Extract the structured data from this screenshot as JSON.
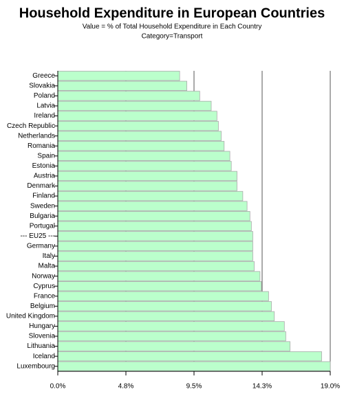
{
  "chart_data": {
    "type": "hbar",
    "title": "Household Expenditure in European Countries",
    "subtitle": [
      "Value = % of Total Household Expenditure in Each Country",
      "Category=Transport"
    ],
    "categories": [
      "Greece",
      "Slovakia",
      "Poland",
      "Latvia",
      "Ireland",
      "Czech Republic",
      "Netherlands",
      "Romania",
      "Spain",
      "Estonia",
      "Austria",
      "Denmark",
      "Finland",
      "Sweden",
      "Bulgaria",
      "Portugal",
      "--- EU25 ---",
      "Germany",
      "Italy",
      "Malta",
      "Norway",
      "Cyprus",
      "France",
      "Belgium",
      "United Kingdom",
      "Hungary",
      "Slovenia",
      "Lithuania",
      "Iceland",
      "Luxembourg"
    ],
    "values": [
      8.5,
      9.0,
      9.9,
      10.7,
      11.1,
      11.2,
      11.4,
      11.6,
      12.0,
      12.1,
      12.5,
      12.5,
      12.9,
      13.2,
      13.4,
      13.5,
      13.6,
      13.6,
      13.6,
      13.7,
      14.1,
      14.2,
      14.7,
      14.9,
      15.1,
      15.8,
      15.9,
      16.2,
      18.4,
      19.0
    ],
    "color": "#bbffcc",
    "xlim": [
      0,
      19.0
    ],
    "xticks": [
      {
        "value": 0,
        "label": "0.0%"
      },
      {
        "value": 4.75,
        "label": "4.8%"
      },
      {
        "value": 9.5,
        "label": "9.5%"
      },
      {
        "value": 14.25,
        "label": "14.3%"
      },
      {
        "value": 19.0,
        "label": "19.0%"
      }
    ],
    "grid": true
  }
}
